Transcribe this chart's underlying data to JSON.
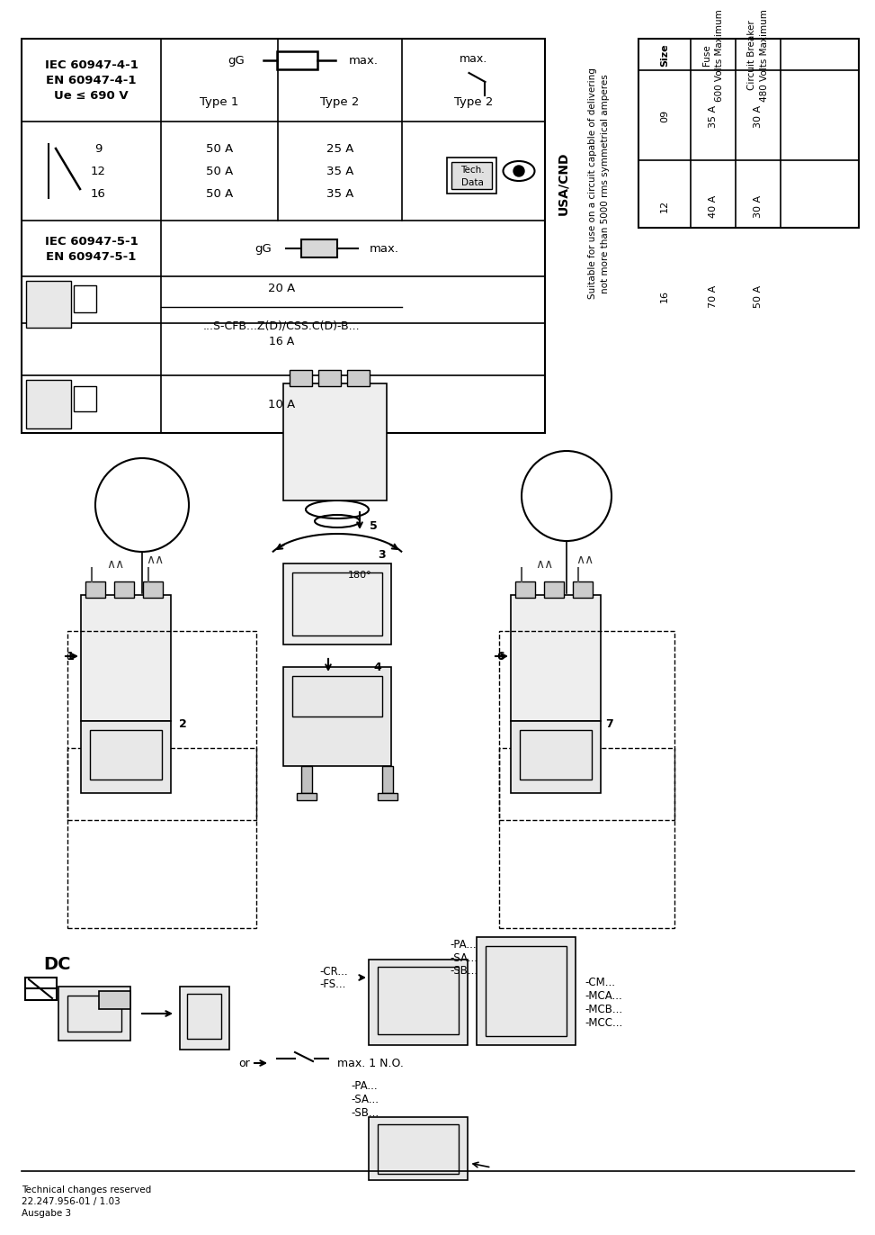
{
  "page_bg": "#ffffff",
  "title_color": "#000000",
  "table_border_color": "#000000",
  "footer_text": "Technical changes reserved\n22.247.956-01 / 1.03\nAusgabe 3",
  "iec_table": {
    "row1_col1": "IEC 60947-4-1\nEN 60947-4-1\nUe £ 690 V",
    "row1_col2_header": "Type 1",
    "row1_col3_header": "Type 2",
    "row1_col4_header": "Type 2",
    "sizes": [
      "9",
      "12",
      "16"
    ],
    "type1": [
      "50 A",
      "50 A",
      "50 A"
    ],
    "type2": [
      "25 A",
      "35 A",
      "35 A"
    ],
    "row3_col1": "IEC 60947-5-1\nEN 60947-5-1",
    "row5_text": "20 A",
    "row6_text": "...S-CFB...Z(D)/CSS.C(D)-B...\n16 A",
    "row7_text": "10 A"
  },
  "usa_table": {
    "header": "USA/CND",
    "subtitle1": "Suitable for use on a circuit capable of delivering",
    "subtitle2": "not more than 5000 rms symmetrical amperes",
    "col_headers": [
      "Size",
      "Fuse\n600 Volts Maximum",
      "Circuit Breaker\n480 Volts Maximum"
    ],
    "rows": [
      [
        "09",
        "35 A",
        "30 A"
      ],
      [
        "12",
        "40 A",
        "30 A"
      ],
      [
        "16",
        "70 A",
        "50 A"
      ]
    ]
  }
}
